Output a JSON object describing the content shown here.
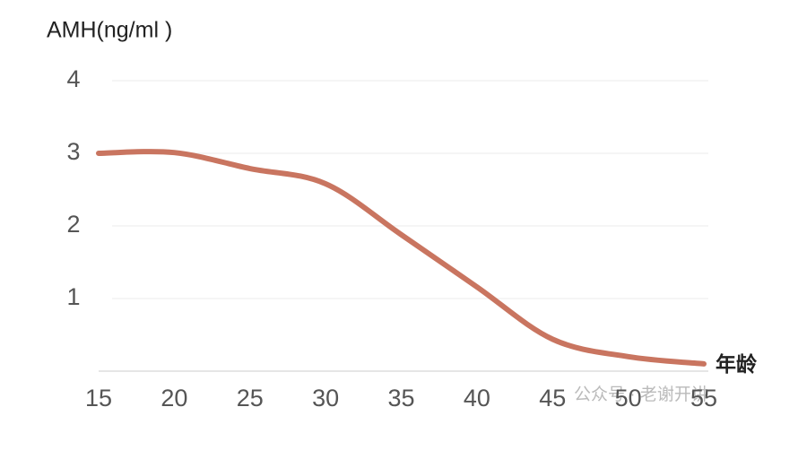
{
  "chart_data": {
    "type": "line",
    "y_label": "AMH(ng/ml )",
    "x_label": "年龄",
    "watermark": "公众号 · 老谢开讲",
    "x": [
      15,
      20,
      25,
      30,
      35,
      40,
      45,
      50,
      55
    ],
    "series": [
      {
        "name": "AMH",
        "color": "#c97560",
        "values": [
          3.0,
          3.01,
          2.79,
          2.58,
          1.88,
          1.16,
          0.44,
          0.2,
          0.1
        ]
      }
    ],
    "xlim": [
      15,
      55
    ],
    "xticks": [
      15,
      20,
      25,
      30,
      35,
      40,
      45,
      50,
      55
    ],
    "ylim": [
      0,
      4
    ],
    "yticks": [
      1,
      2,
      3,
      4
    ],
    "grid": true,
    "legend": false
  }
}
